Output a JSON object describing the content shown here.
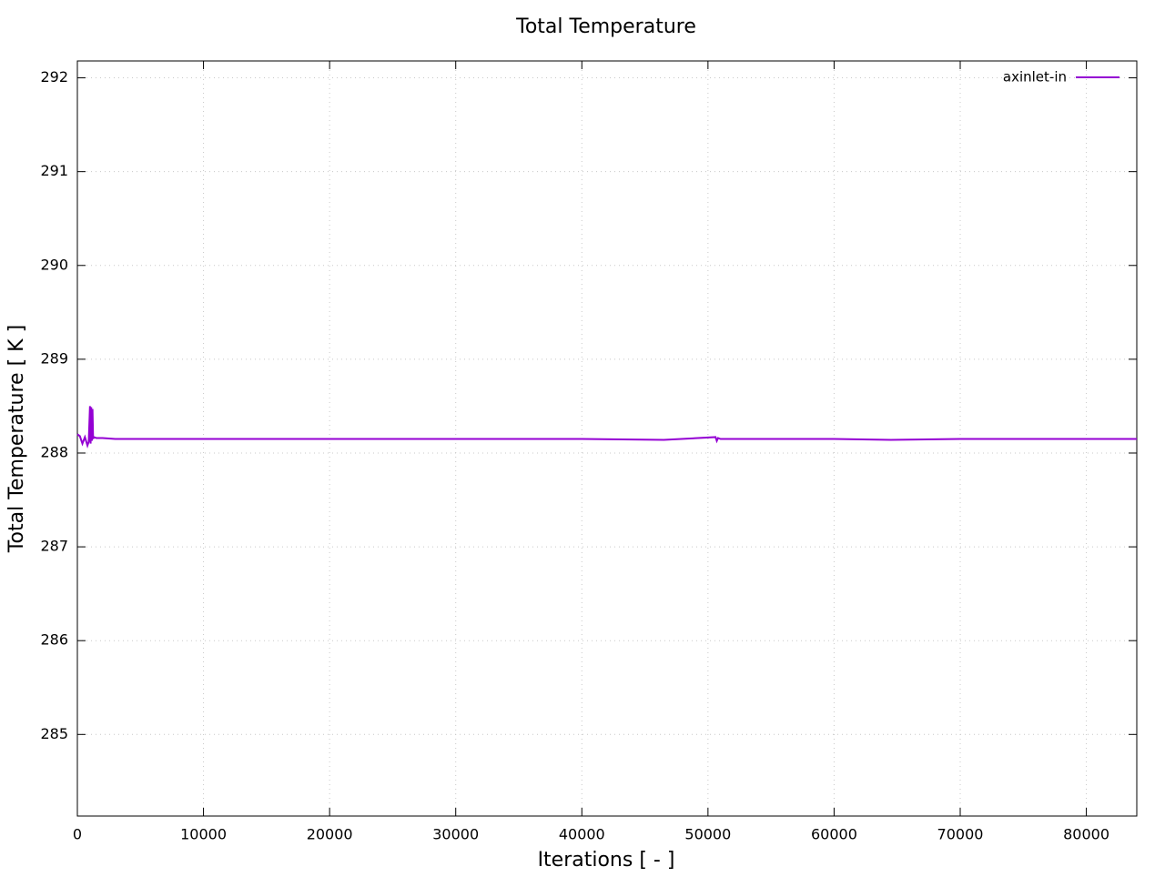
{
  "chart_data": {
    "type": "line",
    "title": "Total Temperature",
    "x_label": "Iterations [ - ]",
    "y_label": "Total Temperature [ K ]",
    "x": [
      0,
      200,
      400,
      600,
      800,
      900,
      1000,
      1050,
      1100,
      1150,
      1200,
      1250,
      1300,
      1500,
      2000,
      3000,
      5000,
      10000,
      20000,
      30000,
      40000,
      46500,
      50600,
      50700,
      50800,
      51000,
      60000,
      64500,
      70000,
      80000,
      84000
    ],
    "series": [
      {
        "name": "axinlet-in",
        "color": "#9400d3",
        "values": [
          288.2,
          288.18,
          288.1,
          288.17,
          288.08,
          288.12,
          288.5,
          288.1,
          288.49,
          288.13,
          288.47,
          288.15,
          288.17,
          288.16,
          288.16,
          288.15,
          288.15,
          288.15,
          288.15,
          288.15,
          288.15,
          288.14,
          288.17,
          288.13,
          288.16,
          288.15,
          288.15,
          288.14,
          288.15,
          288.15,
          288.15
        ]
      }
    ],
    "xlim": [
      0,
      84000
    ],
    "xticks": [
      0,
      10000,
      20000,
      30000,
      40000,
      50000,
      60000,
      70000,
      80000
    ],
    "ylim": [
      284.13,
      292.18
    ],
    "yticks": [
      285,
      286,
      287,
      288,
      289,
      290,
      291,
      292
    ],
    "grid": true,
    "legend": "top-right"
  }
}
